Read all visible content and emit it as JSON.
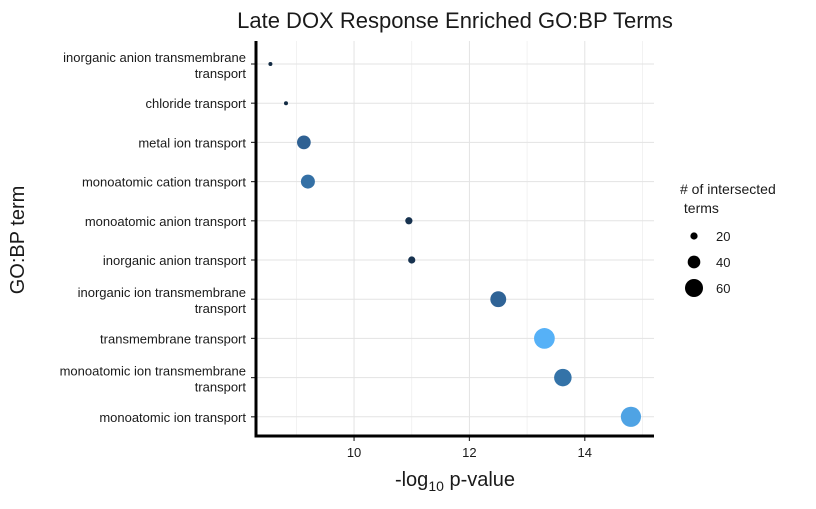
{
  "chart_data": {
    "type": "scatter",
    "title": "Late DOX Response Enriched GO:BP Terms",
    "xlabel": {
      "main": "-log",
      "sub": "10",
      "rest": " p-value"
    },
    "ylabel": "GO:BP term",
    "xlim": [
      8.3,
      15.2
    ],
    "x_ticks": [
      10,
      12,
      14
    ],
    "grid": true,
    "categories": [
      [
        "inorganic anion transmembrane",
        "transport"
      ],
      [
        "chloride transport"
      ],
      [
        "metal ion transport"
      ],
      [
        "monoatomic cation transport"
      ],
      [
        "monoatomic anion transport"
      ],
      [
        "inorganic anion transport"
      ],
      [
        "inorganic ion transmembrane",
        "transport"
      ],
      [
        "transmembrane transport"
      ],
      [
        "monoatomic ion transmembrane",
        "transport"
      ],
      [
        "monoatomic ion transport"
      ]
    ],
    "points": [
      {
        "x": 8.55,
        "intersections": 8,
        "color": "#132B43"
      },
      {
        "x": 8.82,
        "intersections": 8,
        "color": "#132B43"
      },
      {
        "x": 9.13,
        "intersections": 44,
        "color": "#2F6193"
      },
      {
        "x": 9.2,
        "intersections": 45,
        "color": "#3470A5"
      },
      {
        "x": 10.95,
        "intersections": 20,
        "color": "#17324F"
      },
      {
        "x": 11.0,
        "intersections": 20,
        "color": "#17324F"
      },
      {
        "x": 12.5,
        "intersections": 52,
        "color": "#2F6396"
      },
      {
        "x": 13.3,
        "intersections": 70,
        "color": "#56B1F7"
      },
      {
        "x": 13.62,
        "intersections": 58,
        "color": "#3473A8"
      },
      {
        "x": 14.8,
        "intersections": 68,
        "color": "#4FA3E4"
      }
    ],
    "legend": {
      "title": [
        "# of intersected",
        " terms"
      ],
      "placement": "right",
      "entries": [
        {
          "label": "20",
          "value": 20
        },
        {
          "label": "40",
          "value": 40
        },
        {
          "label": "60",
          "value": 60
        }
      ]
    }
  }
}
